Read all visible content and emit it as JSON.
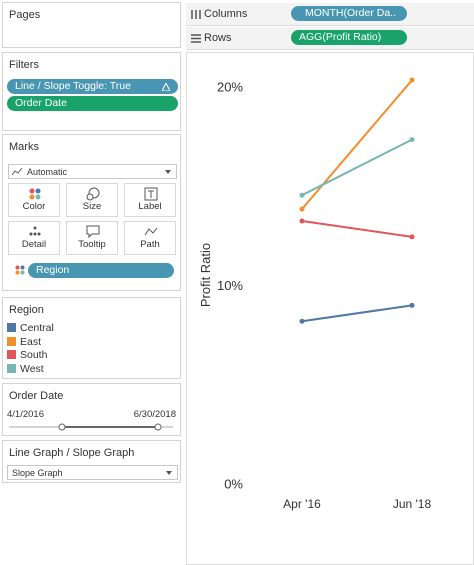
{
  "pages": {
    "title": "Pages"
  },
  "shelves": {
    "columns": {
      "label": "Columns",
      "pill": "MONTH(Order Da.."
    },
    "rows": {
      "label": "Rows",
      "pill": "AGG(Profit Ratio)"
    }
  },
  "filters": {
    "title": "Filters",
    "pills": [
      "Line / Slope Toggle: True",
      "Order Date"
    ]
  },
  "marks": {
    "title": "Marks",
    "mark_type": "Automatic",
    "buttons": [
      "Color",
      "Size",
      "Label",
      "Detail",
      "Tooltip",
      "Path"
    ],
    "pill": "Region"
  },
  "region_legend": {
    "title": "Region"
  },
  "order_date": {
    "title": "Order Date",
    "start": "4/1/2016",
    "end": "6/30/2018"
  },
  "slope_param": {
    "title": "Line Graph / Slope Graph",
    "value": "Slope Graph"
  },
  "chart_data": {
    "type": "line",
    "y_label": "Profit Ratio",
    "categories": [
      "Apr '16",
      "Jun '18"
    ],
    "series": [
      {
        "name": "Central",
        "color": "#4e79a7",
        "values": [
          8.25,
          9.05
        ]
      },
      {
        "name": "East",
        "color": "#f28e2b",
        "values": [
          13.9,
          20.4
        ]
      },
      {
        "name": "South",
        "color": "#e15759",
        "values": [
          13.3,
          12.5
        ]
      },
      {
        "name": "West",
        "color": "#76b7b2",
        "values": [
          14.6,
          17.4
        ]
      }
    ],
    "ylim": [
      0,
      21.5
    ],
    "yticks": [
      {
        "value": 0,
        "label": "0%"
      },
      {
        "value": 10,
        "label": "10%"
      },
      {
        "value": 20,
        "label": "20%"
      }
    ],
    "grid": false
  }
}
